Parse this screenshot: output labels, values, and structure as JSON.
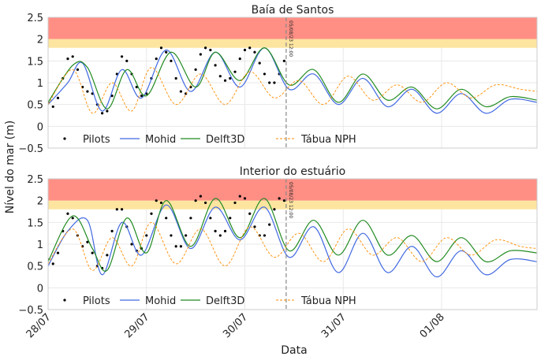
{
  "figure": {
    "ylabel": "Nível do mar (m)",
    "xlabel": "Data",
    "vline_label": "05/08/23 12:00"
  },
  "colors": {
    "pilots": "#000000",
    "mohid": "#4169e1",
    "delft3d": "#228b22",
    "tabua": "#ff8c00",
    "red_band": "#ff8f85",
    "yellow_band": "#fde5a0",
    "vline": "#888888"
  },
  "chart_data": [
    {
      "type": "line",
      "title": "Baía de Santos",
      "xlabel": "",
      "ylabel": "Nível do mar (m)",
      "ylim": [
        -0.5,
        2.5
      ],
      "xlim": [
        0,
        4.97
      ],
      "yticks": [
        -0.5,
        0,
        0.5,
        1,
        1.5,
        2,
        2.5
      ],
      "ytick_labels": [
        "−0.5",
        "0",
        "0.5",
        "1",
        "1.5",
        "2",
        "2.5"
      ],
      "grid": true,
      "legend": "lower-left",
      "bands": [
        {
          "color": "red",
          "y0": 2.0,
          "y1": 2.5
        },
        {
          "color": "yellow",
          "y0": 1.8,
          "y1": 2.0
        }
      ],
      "vline_x": 2.42,
      "series": [
        {
          "name": "Pilots",
          "style": "points",
          "x": [
            0.0,
            0.05,
            0.1,
            0.15,
            0.2,
            0.25,
            0.3,
            0.35,
            0.4,
            0.45,
            0.5,
            0.55,
            0.6,
            0.65,
            0.7,
            0.75,
            0.8,
            0.85,
            0.9,
            0.95,
            1.0,
            1.05,
            1.1,
            1.15,
            1.2,
            1.25,
            1.3,
            1.35,
            1.4,
            1.45,
            1.5,
            1.55,
            1.6,
            1.65,
            1.7,
            1.75,
            1.8,
            1.85,
            1.9,
            1.95,
            2.0,
            2.05,
            2.1,
            2.15,
            2.2,
            2.25,
            2.3,
            2.35,
            2.4
          ],
          "y": [
            0.55,
            0.45,
            0.65,
            1.1,
            1.55,
            1.6,
            1.3,
            0.9,
            0.8,
            0.75,
            0.5,
            0.3,
            0.35,
            0.7,
            1.2,
            1.6,
            1.5,
            1.2,
            0.9,
            0.7,
            0.75,
            1.1,
            1.55,
            1.8,
            1.7,
            1.5,
            1.1,
            0.8,
            0.75,
            0.9,
            1.3,
            1.65,
            1.8,
            1.75,
            1.4,
            1.15,
            1.05,
            1.1,
            1.25,
            1.55,
            1.75,
            1.8,
            1.7,
            1.45,
            1.2,
            1.0,
            1.0,
            1.2,
            1.5
          ]
        },
        {
          "name": "Mohid",
          "style": "line",
          "x": [
            0.0,
            0.2,
            0.35,
            0.55,
            0.75,
            0.95,
            1.2,
            1.45,
            1.7,
            1.95,
            2.2,
            2.45,
            2.7,
            2.95,
            3.2,
            3.45,
            3.7,
            3.95,
            4.2,
            4.45,
            4.7,
            4.97
          ],
          "y": [
            0.5,
            1.0,
            1.45,
            0.35,
            1.3,
            0.65,
            1.75,
            0.8,
            1.7,
            0.9,
            1.8,
            0.85,
            1.2,
            0.5,
            1.1,
            0.45,
            0.85,
            0.3,
            0.75,
            0.3,
            0.62,
            0.55
          ]
        },
        {
          "name": "Delft3D",
          "style": "line",
          "x": [
            0.0,
            0.25,
            0.4,
            0.6,
            0.8,
            1.0,
            1.25,
            1.5,
            1.7,
            1.95,
            2.2,
            2.45,
            2.7,
            2.95,
            3.2,
            3.45,
            3.7,
            3.95,
            4.2,
            4.45,
            4.7,
            4.97
          ],
          "y": [
            0.55,
            1.4,
            1.35,
            0.4,
            1.3,
            0.7,
            1.7,
            0.9,
            1.7,
            1.05,
            1.8,
            0.95,
            1.3,
            0.55,
            1.2,
            0.6,
            0.9,
            0.4,
            0.85,
            0.45,
            0.68,
            0.6
          ]
        },
        {
          "name": "Tábua NPH",
          "style": "dashed",
          "x": [
            0.0,
            0.25,
            0.45,
            0.65,
            0.85,
            1.05,
            1.3,
            1.55,
            1.8,
            2.05,
            2.3,
            2.55,
            2.8,
            3.05,
            3.3,
            3.55,
            3.8,
            4.05,
            4.3,
            4.55,
            4.8,
            4.97
          ],
          "y": [
            0.5,
            1.3,
            0.3,
            1.0,
            0.35,
            1.35,
            0.5,
            1.2,
            0.5,
            1.25,
            0.65,
            1.05,
            0.5,
            1.15,
            0.6,
            0.95,
            0.55,
            1.0,
            0.65,
            0.95,
            0.85,
            0.8
          ]
        }
      ]
    },
    {
      "type": "line",
      "title": "Interior do estuário",
      "xlabel": "Data",
      "ylabel": "Nível do mar (m)",
      "ylim": [
        -0.5,
        2.5
      ],
      "xlim": [
        0,
        4.97
      ],
      "yticks": [
        -0.5,
        0,
        0.5,
        1,
        1.5,
        2,
        2.5
      ],
      "ytick_labels": [
        "−0.5",
        "0",
        "0.5",
        "1",
        "1.5",
        "2",
        "2.5"
      ],
      "xticks": [
        0,
        1,
        2,
        3,
        4
      ],
      "xtick_labels": [
        "28/07",
        "29/07",
        "30/07",
        "31/07",
        "01/08"
      ],
      "grid": true,
      "legend": "lower-left",
      "bands": [
        {
          "color": "red",
          "y0": 2.0,
          "y1": 2.5
        },
        {
          "color": "yellow",
          "y0": 1.8,
          "y1": 2.0
        }
      ],
      "vline_x": 2.42,
      "series": [
        {
          "name": "Pilots",
          "style": "points",
          "x": [
            0.0,
            0.05,
            0.1,
            0.15,
            0.2,
            0.25,
            0.3,
            0.35,
            0.4,
            0.45,
            0.5,
            0.55,
            0.6,
            0.65,
            0.7,
            0.75,
            0.8,
            0.85,
            0.9,
            0.95,
            1.0,
            1.05,
            1.1,
            1.15,
            1.2,
            1.25,
            1.3,
            1.35,
            1.4,
            1.45,
            1.5,
            1.55,
            1.6,
            1.65,
            1.7,
            1.75,
            1.8,
            1.85,
            1.9,
            1.95,
            2.0,
            2.05,
            2.1,
            2.15,
            2.2,
            2.25,
            2.3,
            2.35,
            2.4
          ],
          "y": [
            0.65,
            0.55,
            0.8,
            1.3,
            1.7,
            1.6,
            1.2,
            0.95,
            1.05,
            0.8,
            0.5,
            0.45,
            0.75,
            1.3,
            1.8,
            1.8,
            1.4,
            1.0,
            0.85,
            0.9,
            1.2,
            1.7,
            2.0,
            1.95,
            1.6,
            1.2,
            0.95,
            0.95,
            1.2,
            1.6,
            2.0,
            2.1,
            1.95,
            1.6,
            1.3,
            1.2,
            1.3,
            1.6,
            1.95,
            2.1,
            2.05,
            1.7,
            1.4,
            1.2,
            1.2,
            1.45,
            1.8,
            2.05,
            2.0
          ]
        },
        {
          "name": "Mohid",
          "style": "line",
          "x": [
            0.0,
            0.2,
            0.4,
            0.55,
            0.75,
            0.95,
            1.2,
            1.45,
            1.7,
            1.95,
            2.2,
            2.45,
            2.7,
            2.95,
            3.2,
            3.45,
            3.7,
            3.95,
            4.2,
            4.45,
            4.7,
            4.97
          ],
          "y": [
            0.5,
            1.3,
            1.55,
            0.3,
            1.5,
            0.75,
            1.9,
            0.9,
            1.85,
            1.1,
            1.85,
            0.7,
            1.4,
            0.35,
            1.25,
            0.35,
            0.95,
            0.25,
            0.85,
            0.3,
            0.65,
            0.6
          ]
        },
        {
          "name": "Delft3D",
          "style": "line",
          "x": [
            0.0,
            0.25,
            0.45,
            0.6,
            0.8,
            1.0,
            1.2,
            1.45,
            1.7,
            1.95,
            2.2,
            2.45,
            2.7,
            2.95,
            3.2,
            3.45,
            3.7,
            3.95,
            4.2,
            4.45,
            4.7,
            4.97
          ],
          "y": [
            0.6,
            1.65,
            0.9,
            0.4,
            1.6,
            0.8,
            2.0,
            0.95,
            2.05,
            1.15,
            2.05,
            0.85,
            1.55,
            0.75,
            1.55,
            0.75,
            1.2,
            0.6,
            1.15,
            0.6,
            0.85,
            0.8
          ]
        },
        {
          "name": "Tábua NPH",
          "style": "dashed",
          "x": [
            0.0,
            0.25,
            0.45,
            0.65,
            0.85,
            1.05,
            1.3,
            1.55,
            1.8,
            2.05,
            2.3,
            2.55,
            2.8,
            3.05,
            3.3,
            3.55,
            3.8,
            4.05,
            4.3,
            4.55,
            4.8,
            4.97
          ],
          "y": [
            0.55,
            1.35,
            0.4,
            1.15,
            0.5,
            1.5,
            0.55,
            1.35,
            0.5,
            1.4,
            0.7,
            1.25,
            0.6,
            1.35,
            0.75,
            1.15,
            0.6,
            1.15,
            0.75,
            1.1,
            0.95,
            0.9
          ]
        }
      ]
    }
  ]
}
